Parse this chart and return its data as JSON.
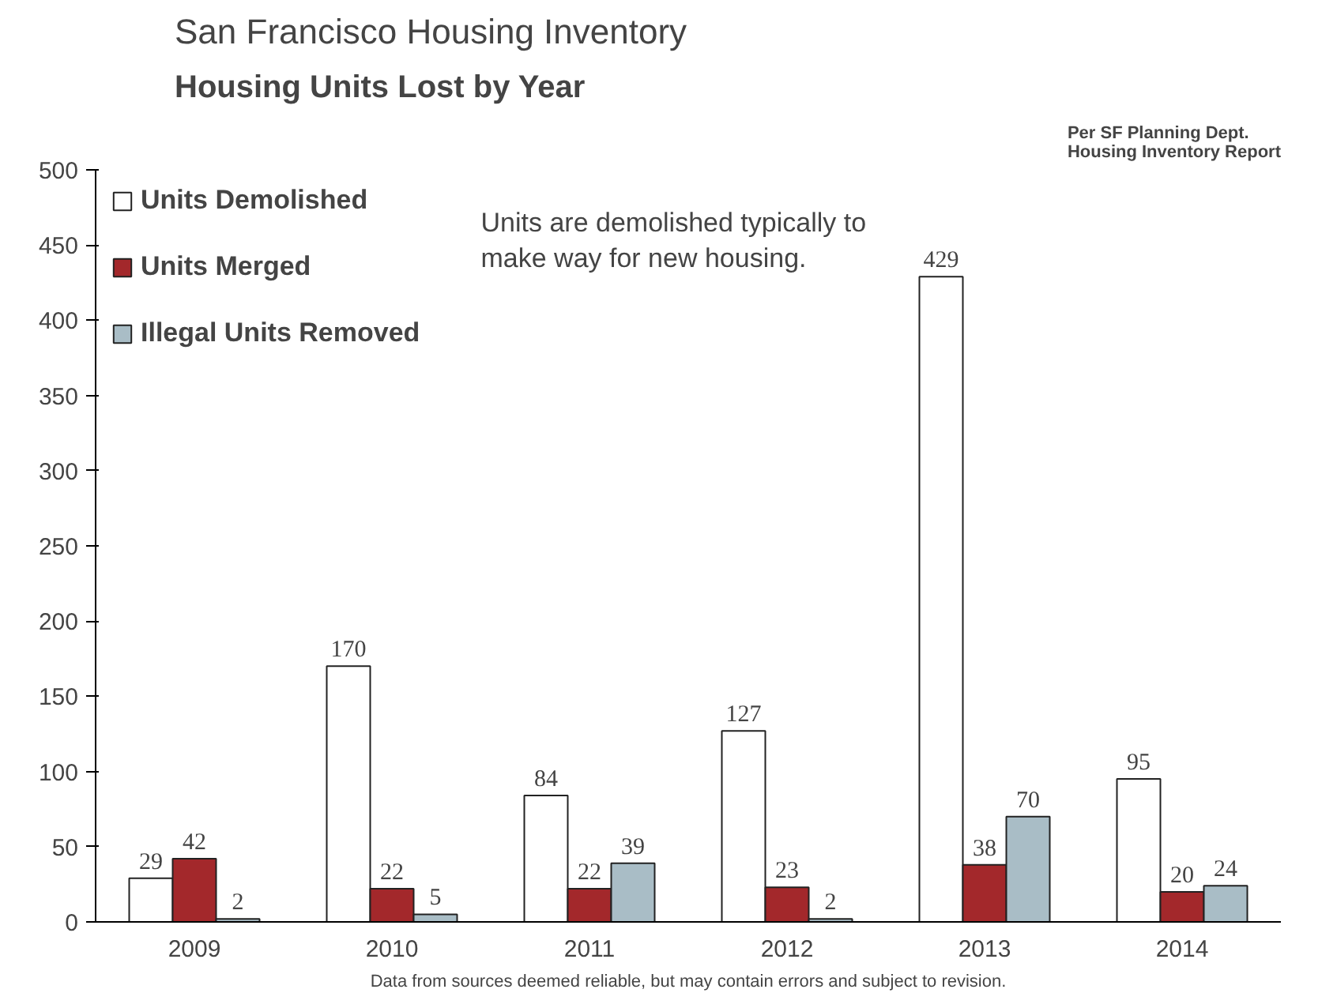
{
  "chart_data": {
    "type": "bar",
    "title": "San Francisco Housing Inventory",
    "subtitle": "Housing Units Lost by Year",
    "categories": [
      "2009",
      "2010",
      "2011",
      "2012",
      "2013",
      "2014"
    ],
    "series": [
      {
        "name": "Units Demolished",
        "color": "#ffffff",
        "values": [
          29,
          170,
          84,
          127,
          429,
          95
        ]
      },
      {
        "name": "Units Merged",
        "color": "#a3282b",
        "values": [
          42,
          22,
          22,
          23,
          38,
          20
        ]
      },
      {
        "name": "Illegal Units Removed",
        "color": "#a9bdc6",
        "values": [
          2,
          5,
          39,
          2,
          70,
          24
        ]
      }
    ],
    "ylim": [
      0,
      500
    ],
    "yticks": [
      0,
      50,
      100,
      150,
      200,
      250,
      300,
      350,
      400,
      450,
      500
    ],
    "grid": false,
    "legend": "top left",
    "data_labels": true,
    "annotations": [
      "Per SF Planning Dept.\nHousing Inventory Report",
      "Units are demolished typically to\nmake way for new housing.",
      "Data from sources deemed reliable, but may contain errors and subject to revision."
    ]
  }
}
